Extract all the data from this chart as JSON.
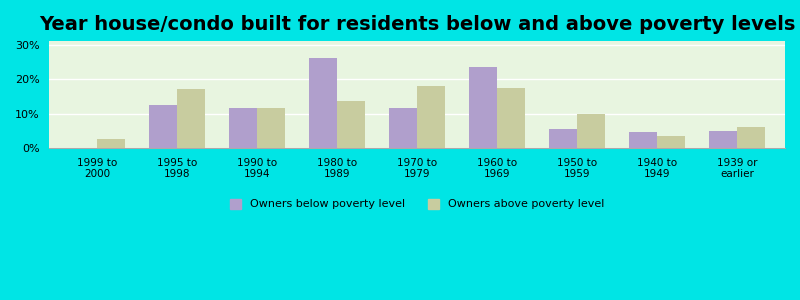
{
  "title": "Year house/condo built for residents below and above poverty levels",
  "categories": [
    "1999 to\n2000",
    "1995 to\n1998",
    "1990 to\n1994",
    "1980 to\n1989",
    "1970 to\n1979",
    "1960 to\n1969",
    "1950 to\n1959",
    "1940 to\n1949",
    "1939 or\nearlier"
  ],
  "below_poverty": [
    0.0,
    12.5,
    11.5,
    26.0,
    11.5,
    23.5,
    5.5,
    4.5,
    5.0
  ],
  "above_poverty": [
    2.5,
    17.0,
    11.5,
    13.5,
    18.0,
    17.5,
    10.0,
    3.5,
    6.0
  ],
  "below_color": "#b09fcc",
  "above_color": "#c8cc9f",
  "ylim": [
    0,
    31
  ],
  "yticks": [
    0,
    10,
    20,
    30
  ],
  "ytick_labels": [
    "0%",
    "10%",
    "20%",
    "30%"
  ],
  "bg_color_top": "#e0f5e0",
  "bg_color_bottom": "#f0faf0",
  "outer_bg": "#00e5e5",
  "bar_width": 0.35,
  "legend_below_label": "Owners below poverty level",
  "legend_above_label": "Owners above poverty level",
  "title_fontsize": 14
}
